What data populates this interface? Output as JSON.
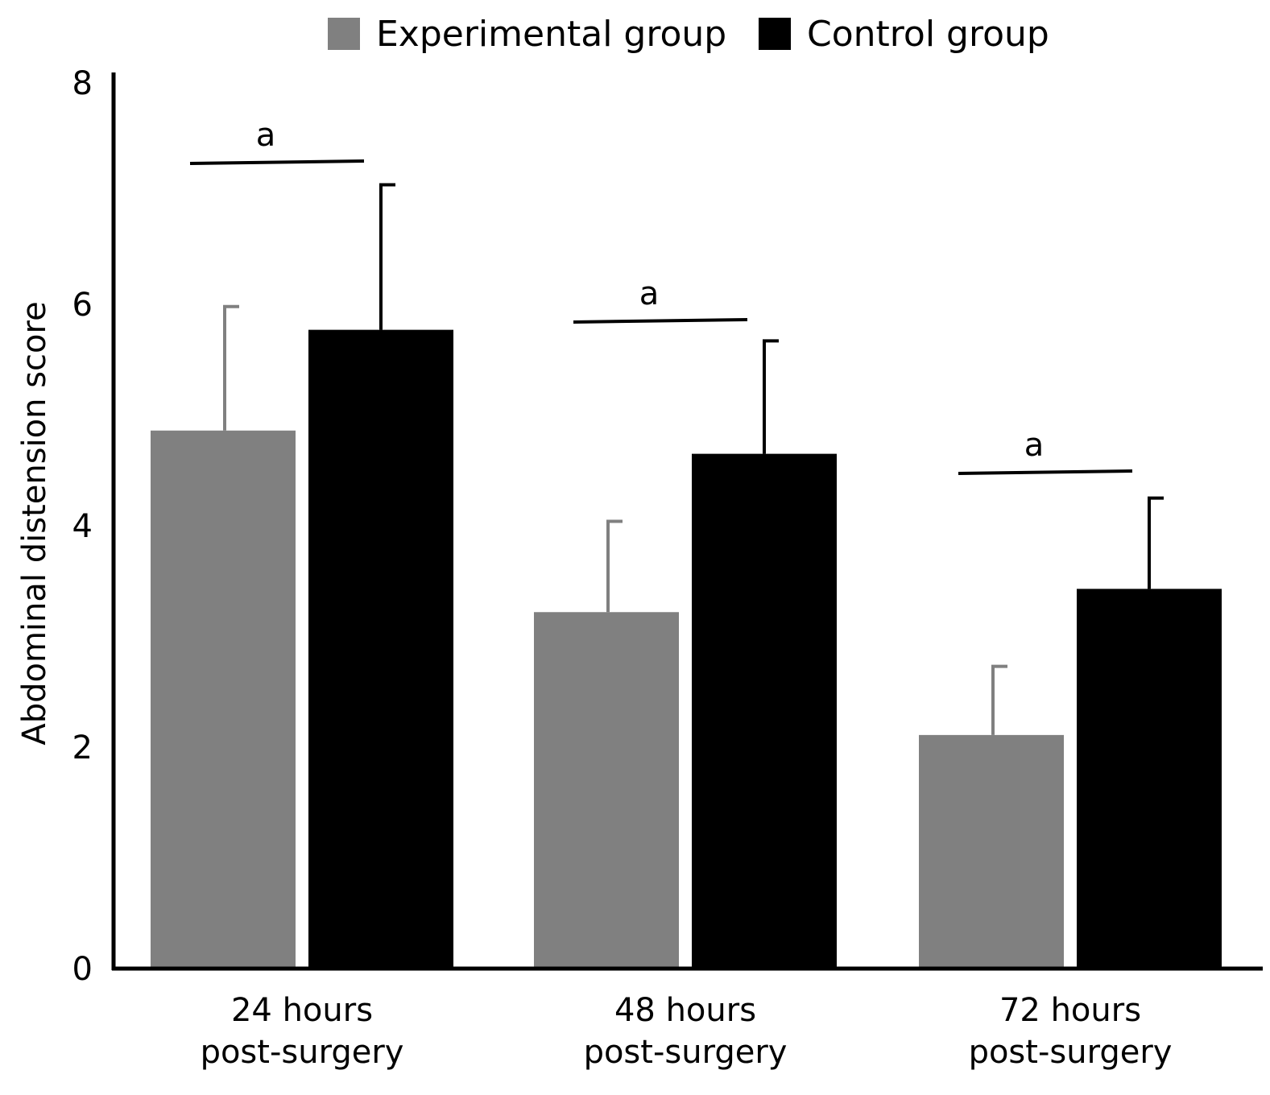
{
  "chart_data": {
    "type": "bar",
    "title": "",
    "xlabel": "",
    "ylabel": "Abdominal distension score",
    "ylim": [
      0,
      8
    ],
    "yticks": [
      0,
      2,
      4,
      6,
      8
    ],
    "grid": false,
    "legend_position": "top",
    "categories": [
      [
        "24 hours",
        "post-surgery"
      ],
      [
        "48 hours",
        "post-surgery"
      ],
      [
        "72 hours",
        "post-surgery"
      ]
    ],
    "series": [
      {
        "name": "Experimental group",
        "color": "#808080",
        "values": [
          4.86,
          3.22,
          2.11
        ],
        "error": [
          1.12,
          0.82,
          0.62
        ]
      },
      {
        "name": "Control group",
        "color": "#000000",
        "values": [
          5.77,
          4.65,
          3.43
        ],
        "error": [
          1.31,
          1.02,
          0.82
        ]
      }
    ],
    "annotations": [
      {
        "label": "a",
        "category": 0
      },
      {
        "label": "a",
        "category": 1
      },
      {
        "label": "a",
        "category": 2
      }
    ]
  }
}
